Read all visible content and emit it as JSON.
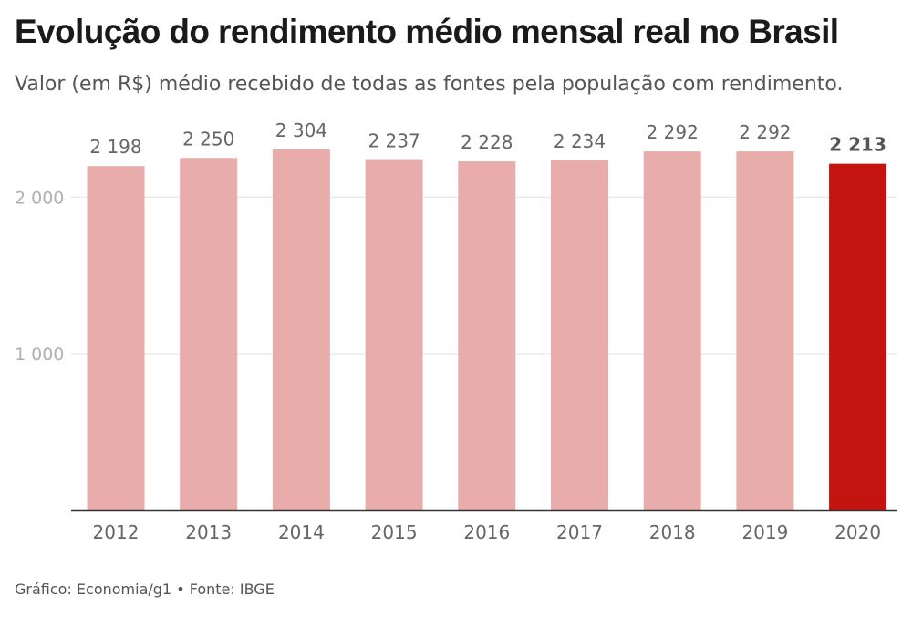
{
  "title": "Evolução do rendimento médio mensal real no Brasil",
  "subtitle": "Valor (em R$) médio recebido de todas as fontes pela população com rendimento.",
  "source": "Gráfico: Economia/g1 • Fonte: IBGE",
  "chart_data": {
    "type": "bar",
    "categories": [
      "2012",
      "2013",
      "2014",
      "2015",
      "2016",
      "2017",
      "2018",
      "2019",
      "2020"
    ],
    "values": [
      2198,
      2250,
      2304,
      2237,
      2228,
      2234,
      2292,
      2292,
      2213
    ],
    "value_labels": [
      "2 198",
      "2 250",
      "2 304",
      "2 237",
      "2 228",
      "2 234",
      "2 292",
      "2 292",
      "2 213"
    ],
    "highlight_index": 8,
    "yticks": [
      1000,
      2000
    ],
    "ytick_labels": [
      "1 000",
      "2 000"
    ],
    "ylim": [
      0,
      2304
    ],
    "grid": true,
    "colors": {
      "bar": "#e8adab",
      "highlight": "#c4140f",
      "grid": "#e3e3e3",
      "axis": "#333333",
      "label": "#666666",
      "highlight_label": "#555555"
    }
  }
}
